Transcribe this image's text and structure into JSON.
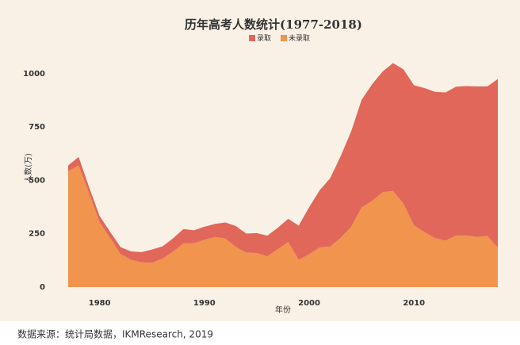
{
  "chart_data": {
    "type": "stacked_area",
    "title": "历年高考人数统计(1977-2018)",
    "x_label": "年份",
    "y_label": "人数(万)",
    "x": [
      1977,
      1978,
      1979,
      1980,
      1981,
      1982,
      1983,
      1984,
      1985,
      1986,
      1987,
      1988,
      1989,
      1990,
      1991,
      1992,
      1993,
      1994,
      1995,
      1996,
      1997,
      1998,
      1999,
      2000,
      2001,
      2002,
      2003,
      2004,
      2005,
      2006,
      2007,
      2008,
      2009,
      2010,
      2011,
      2012,
      2013,
      2014,
      2015,
      2016,
      2017,
      2018
    ],
    "series": [
      {
        "name": "录取",
        "color": "#e0675a",
        "values": [
          27,
          40,
          28,
          28,
          28,
          32,
          39,
          48,
          62,
          57,
          62,
          67,
          60,
          61,
          62,
          75,
          98,
          90,
          93,
          97,
          100,
          108,
          160,
          221,
          268,
          320,
          382,
          447,
          504,
          546,
          566,
          599,
          629,
          657,
          675,
          685,
          694,
          698,
          700,
          705,
          700,
          790
        ]
      },
      {
        "name": "未录取",
        "color": "#f0944e",
        "values": [
          543,
          570,
          440,
          305,
          231,
          155,
          128,
          116,
          114,
          134,
          166,
          205,
          206,
          222,
          234,
          228,
          188,
          161,
          160,
          144,
          178,
          212,
          128,
          154,
          186,
          190,
          231,
          282,
          373,
          404,
          444,
          451,
          391,
          289,
          258,
          230,
          218,
          241,
          242,
          235,
          240,
          185
        ]
      }
    ],
    "xlim": [
      1977,
      2018
    ],
    "xticks": [
      1980,
      1990,
      2000,
      2010
    ],
    "ylim": [
      0,
      1100
    ],
    "yticks": [
      0,
      250,
      500,
      750,
      1000
    ],
    "legend": "top"
  },
  "source": "数据来源：统计局数据，IKMResearch, 2019"
}
